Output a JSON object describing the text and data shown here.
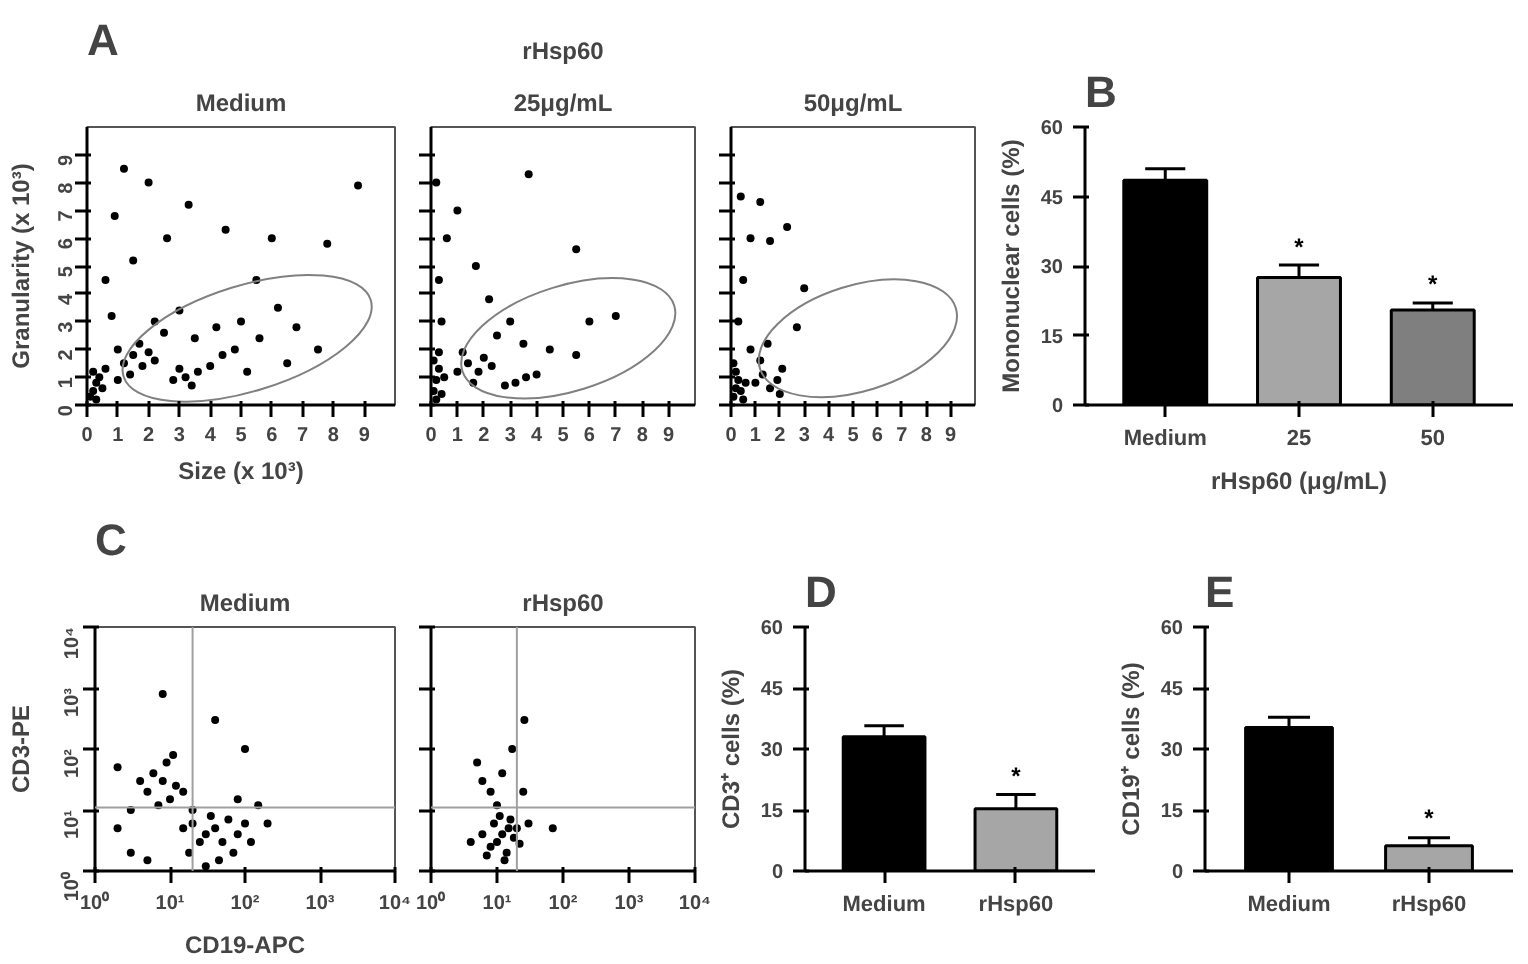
{
  "chart_data": [
    {
      "type": "scatter",
      "title": "Medium",
      "xlabel": "Size (x 10³)",
      "ylabel": "Granularity (x 10³)",
      "annotations": [
        "A"
      ],
      "xlim": [
        0,
        10
      ],
      "ylim": [
        0,
        10
      ],
      "xticks": [
        0,
        1,
        2,
        3,
        4,
        5,
        6,
        7,
        8,
        9
      ],
      "yticks": [
        0,
        1,
        2,
        3,
        4,
        5,
        6,
        7,
        8,
        9
      ],
      "grid": false,
      "series": [
        {
          "marker": "circle",
          "color": "#000000",
          "x": [
            0.2,
            0.3,
            0.4,
            0.2,
            0.5,
            0.6,
            0.1,
            0.3,
            1.2,
            1.5,
            1.8,
            2.0,
            1.4,
            1.7,
            2.2,
            1.0,
            2.8,
            3.2,
            3.6,
            4.0,
            3.4,
            4.4,
            3.0,
            4.8,
            2.5,
            3.5,
            4.2,
            5.0,
            5.6,
            6.2,
            3.0,
            2.2,
            5.2,
            6.8,
            7.5,
            0.8,
            0.6,
            1.5,
            2.6,
            0.9,
            3.3,
            1.2,
            4.5,
            6.0,
            8.8,
            7.8,
            5.5,
            2.0,
            6.5,
            1.0
          ],
          "values": [
            0.5,
            0.8,
            1.0,
            1.2,
            0.6,
            1.3,
            0.3,
            0.2,
            1.5,
            1.8,
            1.4,
            1.9,
            1.1,
            2.2,
            1.6,
            2.0,
            0.9,
            1.0,
            1.2,
            1.4,
            0.7,
            1.8,
            1.3,
            2.0,
            2.6,
            2.4,
            2.8,
            3.0,
            2.4,
            3.5,
            3.4,
            3.0,
            1.2,
            2.8,
            2.0,
            3.2,
            4.5,
            5.2,
            6.0,
            6.8,
            7.2,
            8.5,
            6.3,
            6.0,
            7.9,
            5.8,
            4.5,
            8.0,
            1.5,
            0.9
          ]
        }
      ]
    },
    {
      "type": "scatter",
      "title": "25μg/mL",
      "annotations": [
        "rHsp60"
      ],
      "xlim": [
        0,
        10
      ],
      "ylim": [
        0,
        10
      ],
      "xticks": [
        0,
        1,
        2,
        3,
        4,
        5,
        6,
        7,
        8,
        9
      ],
      "yticks": [
        0,
        1,
        2,
        3,
        4,
        5,
        6,
        7,
        8,
        9
      ],
      "tick_labels": "x",
      "grid": false,
      "series": [
        {
          "marker": "circle",
          "color": "#000000",
          "x": [
            0.1,
            0.2,
            0.3,
            0.1,
            0.4,
            0.2,
            0.5,
            0.3,
            1.0,
            1.4,
            1.8,
            1.2,
            1.6,
            2.0,
            2.3,
            2.8,
            3.2,
            3.6,
            4.0,
            2.5,
            3.5,
            4.5,
            5.5,
            6.0,
            7.0,
            3.0,
            0.4,
            0.3,
            0.6,
            1.0,
            1.7,
            3.7,
            5.5,
            2.2,
            0.2
          ],
          "values": [
            0.5,
            0.9,
            1.3,
            1.6,
            0.4,
            0.2,
            1.0,
            1.9,
            1.2,
            1.5,
            1.2,
            1.9,
            0.8,
            1.7,
            1.4,
            0.7,
            0.8,
            1.0,
            1.1,
            2.5,
            2.2,
            2.0,
            1.8,
            3.0,
            3.2,
            3.0,
            3.0,
            4.5,
            6.0,
            7.0,
            5.0,
            8.3,
            5.6,
            3.8,
            8.0
          ]
        }
      ]
    },
    {
      "type": "scatter",
      "title": "50μg/mL",
      "xlim": [
        0,
        10
      ],
      "ylim": [
        0,
        10
      ],
      "xticks": [
        0,
        1,
        2,
        3,
        4,
        5,
        6,
        7,
        8,
        9
      ],
      "yticks": [
        0,
        1,
        2,
        3,
        4,
        5,
        6,
        7,
        8,
        9
      ],
      "tick_labels": "x",
      "grid": false,
      "series": [
        {
          "marker": "circle",
          "color": "#000000",
          "x": [
            0.1,
            0.2,
            0.3,
            0.4,
            0.2,
            0.5,
            0.6,
            0.1,
            1.0,
            1.3,
            1.6,
            1.9,
            2.1,
            1.2,
            0.8,
            1.5,
            2.0,
            0.3,
            0.5,
            0.8,
            1.2,
            1.6,
            0.4,
            2.7,
            3.0,
            2.3
          ],
          "values": [
            0.3,
            0.6,
            0.9,
            0.5,
            1.2,
            0.2,
            0.8,
            1.5,
            0.8,
            1.1,
            0.6,
            0.9,
            1.3,
            1.6,
            2.0,
            2.2,
            0.4,
            3.0,
            4.5,
            6.0,
            7.3,
            5.9,
            7.5,
            2.8,
            4.2,
            6.4
          ]
        }
      ]
    },
    {
      "type": "bar",
      "xlabel": "rHsp60 (μg/mL)",
      "ylabel": "Mononuclear cells (%)",
      "annotations": [
        "B",
        {
          "text": "*",
          "x": "25",
          "y": 31
        },
        {
          "text": "*",
          "x": "50",
          "y": 23
        }
      ],
      "categories": [
        "Medium",
        "25",
        "50"
      ],
      "values": [
        48.5,
        27.5,
        20.5
      ],
      "colors": [
        "#000000",
        "#a6a6a6",
        "#7f7f7f"
      ],
      "errors": [
        [
          48.5,
          51.0
        ],
        [
          27.5,
          30.2
        ],
        [
          20.5,
          22.0
        ]
      ],
      "ylim": [
        0,
        60
      ],
      "yticks": [
        0,
        15,
        30,
        45,
        60
      ],
      "grid": false
    },
    {
      "type": "scatter",
      "title": "Medium",
      "xlabel": "CD19-APC",
      "ylabel": "CD3-PE",
      "annotations": [
        "C"
      ],
      "log": "xy",
      "xlim": [
        1,
        10000
      ],
      "ylim": [
        1,
        10000
      ],
      "xticks": [
        {
          "value": 1,
          "label": "10⁰"
        },
        {
          "value": 10,
          "label": "10¹"
        },
        {
          "value": 100,
          "label": "10²"
        },
        {
          "value": 1000,
          "label": "10³"
        },
        {
          "value": 10000,
          "label": "10⁴"
        }
      ],
      "yticks": [
        {
          "value": 1,
          "label": "10⁰"
        },
        {
          "value": 10,
          "label": "10¹"
        },
        {
          "value": 100,
          "label": "10²"
        },
        {
          "value": 1000,
          "label": "10³"
        },
        {
          "value": 10000,
          "label": "10⁴"
        }
      ],
      "grid": false,
      "ref_lines": [
        {
          "axis": "x",
          "value": 20,
          "color": "#a0a0a0"
        },
        {
          "axis": "y",
          "value": 11,
          "color": "#a0a0a0"
        }
      ],
      "series": [
        {
          "marker": "circle",
          "color": "#000000",
          "x": [
            5,
            8,
            10,
            6,
            12,
            9,
            7,
            4,
            11,
            15,
            3,
            20,
            30,
            40,
            50,
            60,
            80,
            100,
            25,
            35,
            120,
            15,
            200,
            70,
            45,
            18,
            3,
            2,
            5,
            150,
            80,
            30,
            20,
            2,
            8,
            40,
            100
          ],
          "values": [
            20,
            30,
            15,
            40,
            25,
            60,
            12,
            30,
            80,
            20,
            10,
            6,
            4,
            5,
            3,
            7,
            4,
            6,
            3,
            8,
            3,
            5,
            6,
            2,
            1.5,
            2,
            2,
            5,
            1.5,
            12,
            15,
            1.2,
            10,
            50,
            800,
            300,
            100
          ]
        }
      ]
    },
    {
      "type": "scatter",
      "title": "rHsp60",
      "log": "xy",
      "xlim": [
        1,
        10000
      ],
      "ylim": [
        1,
        10000
      ],
      "xticks": [
        {
          "value": 1,
          "label": "10⁰"
        },
        {
          "value": 10,
          "label": "10¹"
        },
        {
          "value": 100,
          "label": "10²"
        },
        {
          "value": 1000,
          "label": "10³"
        },
        {
          "value": 10000,
          "label": "10⁴"
        }
      ],
      "yticks": [
        {
          "value": 1,
          "label": "10⁰"
        },
        {
          "value": 10,
          "label": "10¹"
        },
        {
          "value": 100,
          "label": "10²"
        },
        {
          "value": 1000,
          "label": "10³"
        },
        {
          "value": 10000,
          "label": "10⁴"
        }
      ],
      "tick_labels": "x",
      "grid": false,
      "ref_lines": [
        {
          "axis": "x",
          "value": 20,
          "color": "#a0a0a0"
        },
        {
          "axis": "y",
          "value": 11,
          "color": "#a0a0a0"
        }
      ],
      "series": [
        {
          "marker": "circle",
          "color": "#000000",
          "x": [
            12,
            10,
            15,
            8,
            14,
            9,
            18,
            11,
            6,
            20,
            13,
            16,
            7,
            22,
            10,
            8,
            6,
            12,
            5,
            25,
            4,
            30,
            70,
            26,
            17
          ],
          "values": [
            4,
            3,
            5,
            2.5,
            2,
            6,
            3.5,
            8,
            4,
            5,
            1.5,
            7,
            1.8,
            2.8,
            12,
            20,
            30,
            40,
            60,
            20,
            3,
            6,
            5,
            300,
            100
          ]
        }
      ]
    },
    {
      "type": "bar",
      "ylabel": "CD3⁺ cells (%)",
      "annotations": [
        "D",
        {
          "text": "*",
          "x": "rHsp60",
          "y": 20
        }
      ],
      "categories": [
        "Medium",
        "rHsp60"
      ],
      "values": [
        33.0,
        15.3
      ],
      "colors": [
        "#000000",
        "#a6a6a6"
      ],
      "errors": [
        [
          33.0,
          35.7
        ],
        [
          15.3,
          18.8
        ]
      ],
      "ylim": [
        0,
        60
      ],
      "yticks": [
        0,
        15,
        30,
        45,
        60
      ],
      "grid": false
    },
    {
      "type": "bar",
      "ylabel": "CD19⁺ cells (%)",
      "annotations": [
        "E",
        {
          "text": "*",
          "x": "rHsp60",
          "y": 9.5
        }
      ],
      "categories": [
        "Medium",
        "rHsp60"
      ],
      "values": [
        35.3,
        6.2
      ],
      "colors": [
        "#000000",
        "#a6a6a6"
      ],
      "errors": [
        [
          35.3,
          37.8
        ],
        [
          6.2,
          8.2
        ]
      ],
      "ylim": [
        0,
        60
      ],
      "yticks": [
        0,
        15,
        30,
        45,
        60
      ],
      "grid": false
    }
  ]
}
